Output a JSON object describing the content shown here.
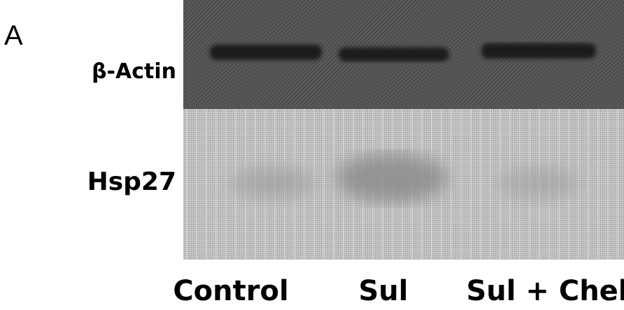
{
  "panel": {
    "label": "A"
  },
  "rows": [
    {
      "label": "β-Actin"
    },
    {
      "label": "Hsp27"
    }
  ],
  "lanes": [
    {
      "label": "Control"
    },
    {
      "label": "Sul"
    },
    {
      "label": "Sul + Chel"
    }
  ]
}
